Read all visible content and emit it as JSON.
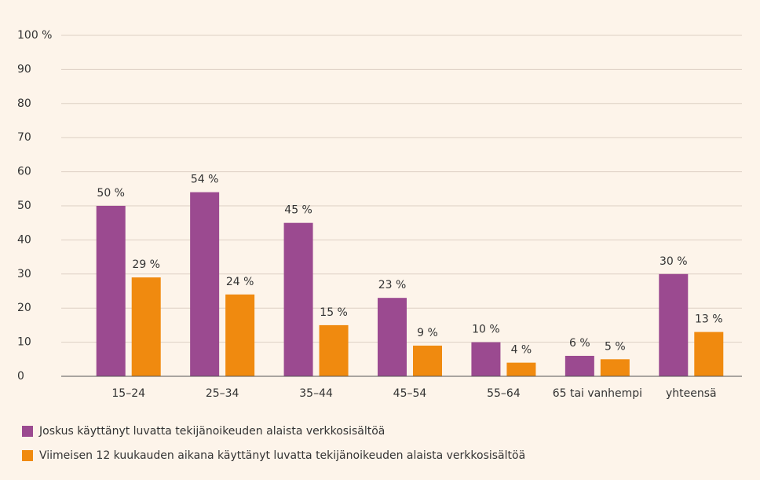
{
  "chart_data": {
    "type": "bar",
    "categories": [
      "15–24",
      "25–34",
      "35–44",
      "45–54",
      "55–64",
      "65 tai vanhempi",
      "yhteensä"
    ],
    "series": [
      {
        "name": "Joskus käyttänyt luvatta tekijänoikeuden alaista verkkosisältöä",
        "color": "#9b4a90",
        "values": [
          50,
          54,
          45,
          23,
          10,
          6,
          30
        ],
        "value_labels": [
          "50 %",
          "54 %",
          "45 %",
          "23 %",
          "10 %",
          "6 %",
          "30 %"
        ]
      },
      {
        "name": "Viimeisen 12 kuukauden aikana käyttänyt luvatta tekijänoikeuden alaista verkkosisältöä",
        "color": "#f08a0f",
        "values": [
          29,
          24,
          15,
          9,
          4,
          5,
          13
        ],
        "value_labels": [
          "29 %",
          "24 %",
          "15 %",
          "9 %",
          "4 %",
          "5 %",
          "13 %"
        ]
      }
    ],
    "ylim": [
      0,
      100
    ],
    "yticks": [
      0,
      10,
      20,
      30,
      40,
      50,
      60,
      70,
      80,
      90,
      {
        "value": 100,
        "label": "100 %"
      }
    ],
    "grid": true,
    "legend": "bottom"
  }
}
